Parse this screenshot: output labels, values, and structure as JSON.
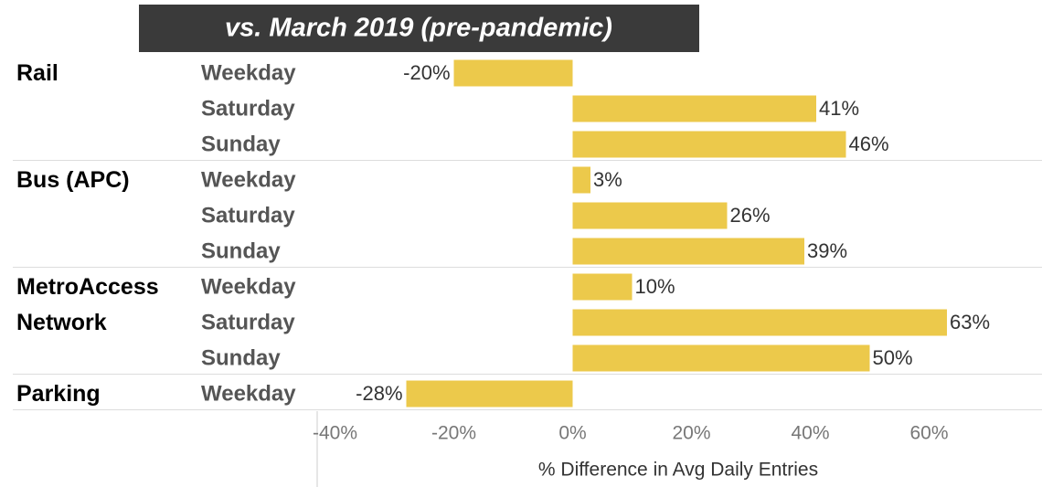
{
  "chart_data": {
    "type": "bar",
    "title": "vs. March 2019 (pre-pandemic)",
    "xlabel": "% Difference in Avg Daily Entries",
    "color": "#ecc94b",
    "xlim": [
      -43,
      78
    ],
    "xticks": [
      {
        "value": -40,
        "label": "-40%"
      },
      {
        "value": -20,
        "label": "-20%"
      },
      {
        "value": 0,
        "label": "0%"
      },
      {
        "value": 20,
        "label": "20%"
      },
      {
        "value": 40,
        "label": "40%"
      },
      {
        "value": 60,
        "label": "60%"
      }
    ],
    "groups": [
      {
        "name": "Rail",
        "categories": [
          "Weekday",
          "Saturday",
          "Sunday"
        ],
        "values": [
          -20,
          41,
          46
        ],
        "value_labels": [
          "-20%",
          "41%",
          "46%"
        ]
      },
      {
        "name": "Bus (APC)",
        "categories": [
          "Weekday",
          "Saturday",
          "Sunday"
        ],
        "values": [
          3,
          26,
          39
        ],
        "value_labels": [
          "3%",
          "26%",
          "39%"
        ]
      },
      {
        "name": "MetroAccess Network",
        "categories": [
          "Weekday",
          "Saturday",
          "Sunday"
        ],
        "values": [
          10,
          63,
          50
        ],
        "value_labels": [
          "10%",
          "63%",
          "50%"
        ]
      },
      {
        "name": "Parking",
        "categories": [
          "Weekday"
        ],
        "values": [
          -28
        ],
        "value_labels": [
          "-28%"
        ]
      }
    ]
  }
}
